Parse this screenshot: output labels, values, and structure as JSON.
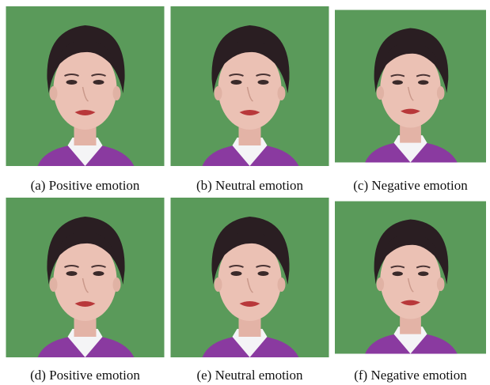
{
  "figure": {
    "panels": [
      {
        "caption": "(a) Positive emotion"
      },
      {
        "caption": "(b) Neutral emotion"
      },
      {
        "caption": "(c) Negative emotion"
      },
      {
        "caption": "(d) Positive emotion"
      },
      {
        "caption": "(e) Neutral emotion"
      },
      {
        "caption": "(f) Negative emotion"
      }
    ]
  }
}
